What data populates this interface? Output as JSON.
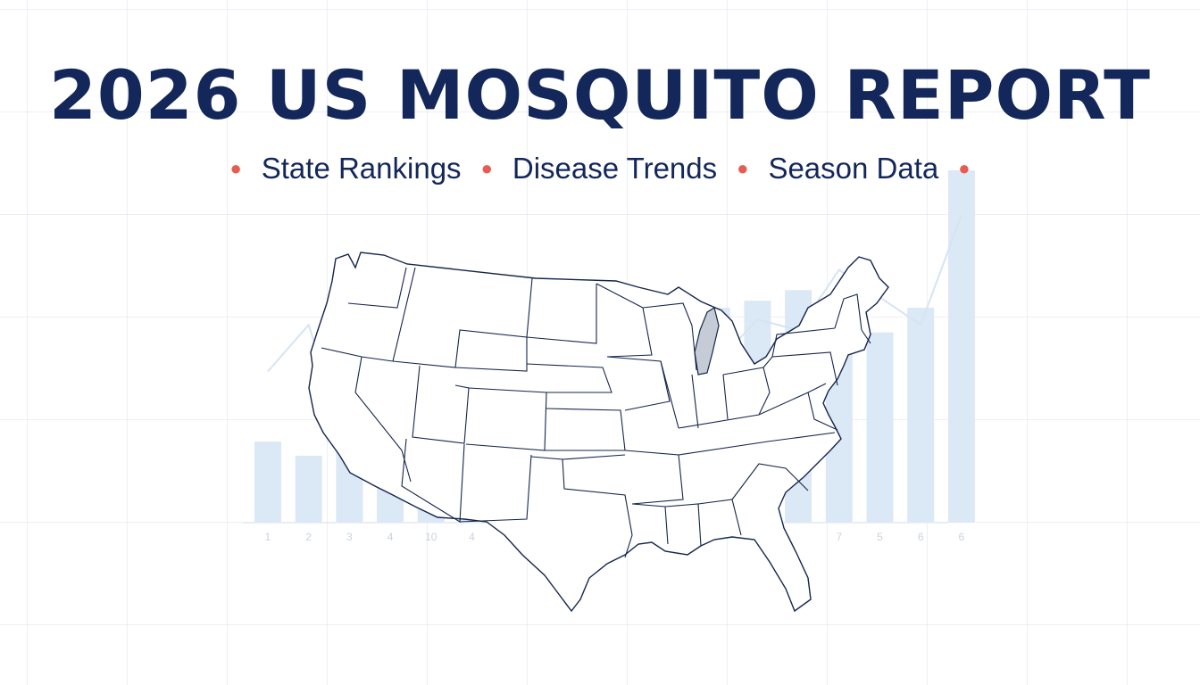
{
  "title": "2026 US MOSQUITO REPORT",
  "subtitle": {
    "items": [
      "State Rankings",
      "Disease Trends",
      "Season Data"
    ]
  },
  "colors": {
    "title": "#13275a",
    "bullet": "#e85c50",
    "background_chart": "#dbe8f5",
    "map_stroke": "#14254d",
    "lake": "#c5ccd6"
  },
  "chart_data": {
    "type": "bar",
    "categories": [
      "1",
      "2",
      "3",
      "4",
      "10",
      "4",
      "",
      "",
      "",
      "",
      "",
      "",
      "",
      "",
      "7",
      "5",
      "6",
      "6"
    ],
    "values": [
      0.23,
      0.19,
      0.26,
      0.29,
      0.35,
      0.31,
      0.38,
      0.42,
      0.47,
      0.52,
      0.58,
      0.61,
      0.63,
      0.66,
      0.59,
      0.54,
      0.61,
      1.0
    ],
    "line_values": [
      0.55,
      0.72,
      0.25,
      0.5,
      0.62,
      0.58,
      0.82,
      0.66,
      0.72,
      0.55,
      0.82,
      0.58,
      0.74,
      0.7,
      0.92,
      0.82,
      0.72,
      1.12
    ],
    "title": "",
    "xlabel": "",
    "ylabel": ""
  }
}
